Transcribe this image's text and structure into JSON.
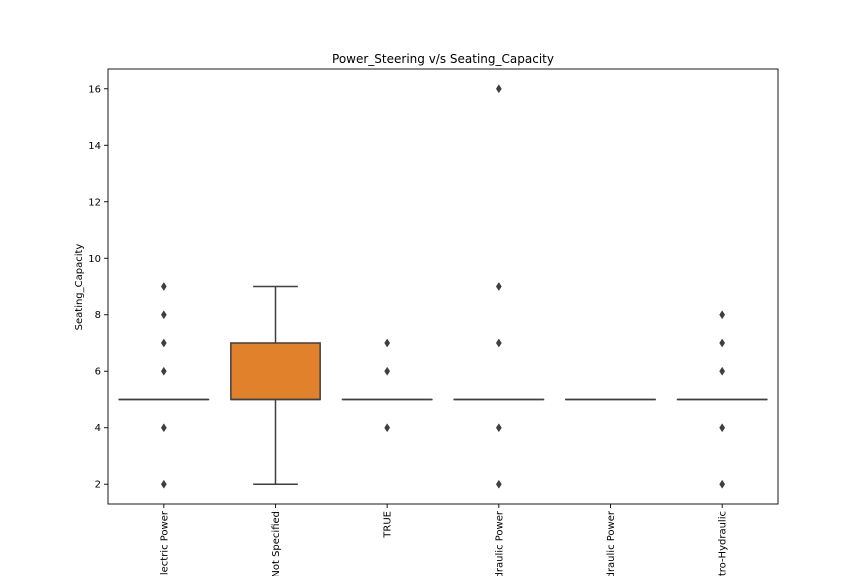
{
  "chart_data": {
    "type": "box",
    "title": "Power_Steering v/s Seating_Capacity",
    "xlabel": "",
    "ylabel": "Seating_Capacity",
    "ylim": [
      1.3,
      16.7
    ],
    "yticks": [
      2,
      4,
      6,
      8,
      10,
      12,
      14,
      16
    ],
    "ytick_labels": [
      "2",
      "4",
      "6",
      "8",
      "10",
      "12",
      "14",
      "16"
    ],
    "grid": false,
    "categories": [
      "Electric Power",
      "Not Specified",
      "TRUE",
      "Hydraulic Power",
      "Hydraulic Power",
      "Electro-Hydraulic"
    ],
    "category_labels_visible": [
      "lectric Power",
      "Not Specified",
      "TRUE",
      "draulic Power",
      "draulic Power",
      "tro-Hydraulic"
    ],
    "boxes": [
      {
        "q1": 5,
        "median": 5,
        "q3": 5,
        "whisker_low": 5,
        "whisker_high": 5,
        "outliers": [
          2,
          4,
          6,
          7,
          8,
          9
        ],
        "color": "#3a75af"
      },
      {
        "q1": 5,
        "median": 5,
        "q3": 7,
        "whisker_low": 2,
        "whisker_high": 9,
        "outliers": [],
        "color": "#e1812c"
      },
      {
        "q1": 5,
        "median": 5,
        "q3": 5,
        "whisker_low": 5,
        "whisker_high": 5,
        "outliers": [
          4,
          6,
          7
        ],
        "color": "#3a923a"
      },
      {
        "q1": 5,
        "median": 5,
        "q3": 5,
        "whisker_low": 5,
        "whisker_high": 5,
        "outliers": [
          2,
          4,
          7,
          9,
          16
        ],
        "color": "#c03d3e"
      },
      {
        "q1": 5,
        "median": 5,
        "q3": 5,
        "whisker_low": 5,
        "whisker_high": 5,
        "outliers": [],
        "color": "#9372b2"
      },
      {
        "q1": 5,
        "median": 5,
        "q3": 5,
        "whisker_low": 5,
        "whisker_high": 5,
        "outliers": [
          2,
          4,
          6,
          7,
          8
        ],
        "color": "#845b53"
      }
    ],
    "line_color": "#3f3f3f"
  }
}
